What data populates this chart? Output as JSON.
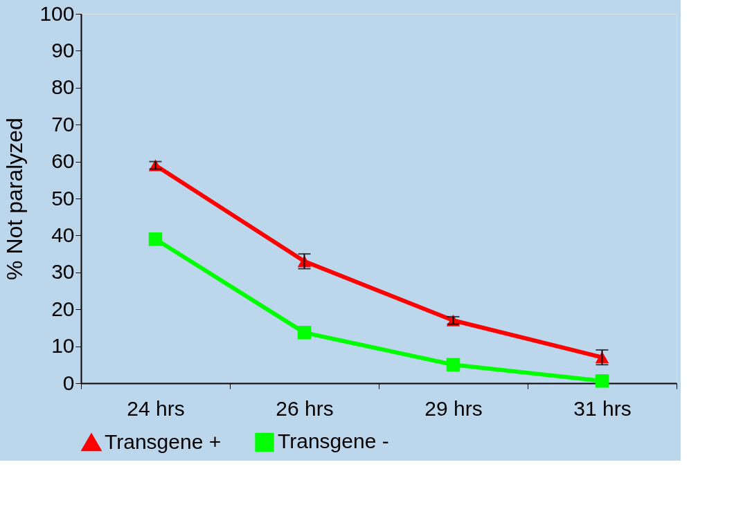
{
  "chart_data": {
    "type": "line",
    "ylabel": "% Not paralyzed",
    "categories": [
      "24 hrs",
      "26 hrs",
      "29 hrs",
      "31 hrs"
    ],
    "series": [
      {
        "name": "Transgene +",
        "color": "#ff0000",
        "marker": "triangle",
        "values": [
          59,
          33,
          17,
          7
        ],
        "errors": [
          1,
          2,
          1,
          2
        ]
      },
      {
        "name": "Transgene -",
        "color": "#00ff00",
        "marker": "square",
        "values": [
          39,
          13.7,
          5,
          0.6
        ]
      }
    ],
    "ylim": [
      0,
      100
    ],
    "yticks": [
      0,
      10,
      20,
      30,
      40,
      50,
      60,
      70,
      80,
      90,
      100
    ],
    "grid": false,
    "legend": "bottom",
    "line_style": "solid"
  }
}
